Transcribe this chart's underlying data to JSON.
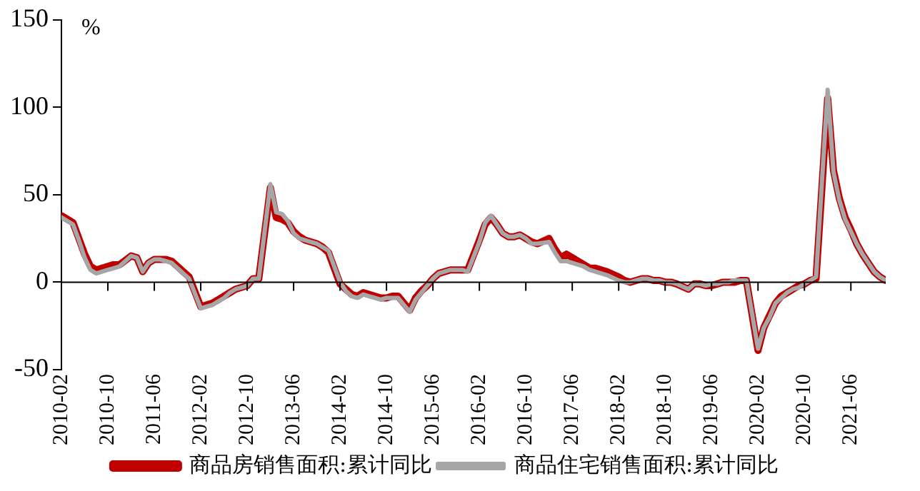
{
  "chart_data": {
    "type": "line",
    "ylabel": "%",
    "x": [
      "2010-02",
      "2010-03",
      "2010-04",
      "2010-05",
      "2010-06",
      "2010-07",
      "2010-08",
      "2010-09",
      "2010-10",
      "2010-11",
      "2010-12",
      "2011-02",
      "2011-03",
      "2011-04",
      "2011-05",
      "2011-06",
      "2011-07",
      "2011-08",
      "2011-09",
      "2011-10",
      "2011-11",
      "2011-12",
      "2012-02",
      "2012-03",
      "2012-04",
      "2012-05",
      "2012-06",
      "2012-07",
      "2012-08",
      "2012-09",
      "2012-10",
      "2012-11",
      "2012-12",
      "2013-02",
      "2013-03",
      "2013-04",
      "2013-05",
      "2013-06",
      "2013-07",
      "2013-08",
      "2013-09",
      "2013-10",
      "2013-11",
      "2013-12",
      "2014-02",
      "2014-03",
      "2014-04",
      "2014-05",
      "2014-06",
      "2014-07",
      "2014-08",
      "2014-09",
      "2014-10",
      "2014-11",
      "2014-12",
      "2015-02",
      "2015-03",
      "2015-04",
      "2015-05",
      "2015-06",
      "2015-07",
      "2015-08",
      "2015-09",
      "2015-10",
      "2015-11",
      "2015-12",
      "2016-02",
      "2016-03",
      "2016-04",
      "2016-05",
      "2016-06",
      "2016-07",
      "2016-08",
      "2016-09",
      "2016-10",
      "2016-11",
      "2016-12",
      "2017-02",
      "2017-03",
      "2017-04",
      "2017-05",
      "2017-06",
      "2017-07",
      "2017-08",
      "2017-09",
      "2017-10",
      "2017-11",
      "2017-12",
      "2018-02",
      "2018-03",
      "2018-04",
      "2018-05",
      "2018-06",
      "2018-07",
      "2018-08",
      "2018-09",
      "2018-10",
      "2018-11",
      "2018-12",
      "2019-02",
      "2019-03",
      "2019-04",
      "2019-05",
      "2019-06",
      "2019-07",
      "2019-08",
      "2019-09",
      "2019-10",
      "2019-11",
      "2019-12",
      "2020-02",
      "2020-03",
      "2020-04",
      "2020-05",
      "2020-06",
      "2020-07",
      "2020-08",
      "2020-09",
      "2020-10",
      "2020-11",
      "2020-12",
      "2021-02",
      "2021-03",
      "2021-04",
      "2021-05",
      "2021-06",
      "2021-07",
      "2021-08",
      "2021-09",
      "2021-10",
      "2021-11",
      "2021-12"
    ],
    "series": [
      {
        "name": "商品房销售面积:累计同比",
        "color": "#c00000",
        "values": [
          38,
          36,
          34,
          25,
          16,
          9,
          7,
          8,
          9,
          10,
          10,
          15,
          14,
          6,
          11,
          13,
          13,
          13,
          12,
          9,
          6,
          3,
          -14,
          -13,
          -12,
          -10,
          -8,
          -6,
          -4,
          -3,
          -2,
          2,
          2,
          54,
          37,
          36,
          34,
          29,
          26,
          24,
          23,
          22,
          20,
          17,
          -1,
          -4,
          -7,
          -8,
          -6,
          -7,
          -8,
          -9,
          -9,
          -8,
          -8,
          -16,
          -9,
          -5,
          -2,
          2,
          5,
          6,
          7,
          7,
          7,
          7,
          24,
          33,
          37,
          33,
          28,
          26,
          26,
          27,
          25,
          23,
          22,
          25,
          19,
          14,
          16,
          14,
          12,
          10,
          8,
          8,
          7,
          6,
          3,
          1,
          0,
          1,
          2,
          2,
          1,
          1,
          0,
          0,
          -1,
          -4,
          -1,
          -1,
          -2,
          -2,
          -1,
          0,
          0,
          0,
          1,
          1,
          -39,
          -26,
          -19,
          -12,
          -8,
          -6,
          -4,
          -2,
          -1,
          1,
          2,
          105,
          64,
          48,
          37,
          30,
          22,
          16,
          11,
          6,
          3,
          1
        ]
      },
      {
        "name": "商品住宅销售面积:累计同比",
        "color": "#a6a6a6",
        "values": [
          37,
          35,
          33,
          24,
          14,
          7,
          5,
          6,
          7,
          8,
          9,
          15,
          14,
          6,
          11,
          13,
          13,
          12,
          11,
          8,
          5,
          2,
          -15,
          -14,
          -13,
          -11,
          -9,
          -6,
          -4,
          -3,
          -2,
          2,
          2,
          56,
          40,
          39,
          35,
          28,
          25,
          24,
          23,
          22,
          20,
          18,
          0,
          -5,
          -8,
          -9,
          -7,
          -8,
          -9,
          -10,
          -9,
          -9,
          -9,
          -17,
          -10,
          -6,
          -2,
          2,
          5,
          6,
          7,
          7,
          7,
          6,
          23,
          34,
          38,
          33,
          28,
          26,
          26,
          27,
          25,
          22,
          22,
          23,
          17,
          12,
          12,
          11,
          10,
          9,
          7,
          6,
          5,
          4,
          1,
          0,
          0,
          1,
          2,
          2,
          1,
          1,
          0,
          0,
          -1,
          -4,
          -1,
          -1,
          -2,
          -1,
          -1,
          0,
          0,
          1,
          1,
          1,
          -38,
          -26,
          -20,
          -12,
          -9,
          -6,
          -4,
          -3,
          -1,
          1,
          3,
          110,
          63,
          47,
          36,
          29,
          22,
          16,
          11,
          6,
          3,
          1
        ]
      }
    ],
    "xlim": [
      "2010-02",
      "2021-12"
    ],
    "xticks": [
      "2010-02",
      "2010-10",
      "2011-06",
      "2012-02",
      "2012-10",
      "2013-06",
      "2014-02",
      "2014-10",
      "2015-06",
      "2016-02",
      "2016-10",
      "2017-06",
      "2018-02",
      "2018-10",
      "2019-06",
      "2020-02",
      "2020-10",
      "2021-06"
    ],
    "ylim": [
      -50,
      150
    ],
    "yticks": [
      -50,
      0,
      50,
      100,
      150
    ],
    "ref_lines": [
      {
        "axis": "y",
        "value": 0,
        "color": "#000000",
        "line_style": "solid"
      }
    ],
    "grid": false,
    "legend": "bottom",
    "marker": "none",
    "line_style": "solid"
  }
}
